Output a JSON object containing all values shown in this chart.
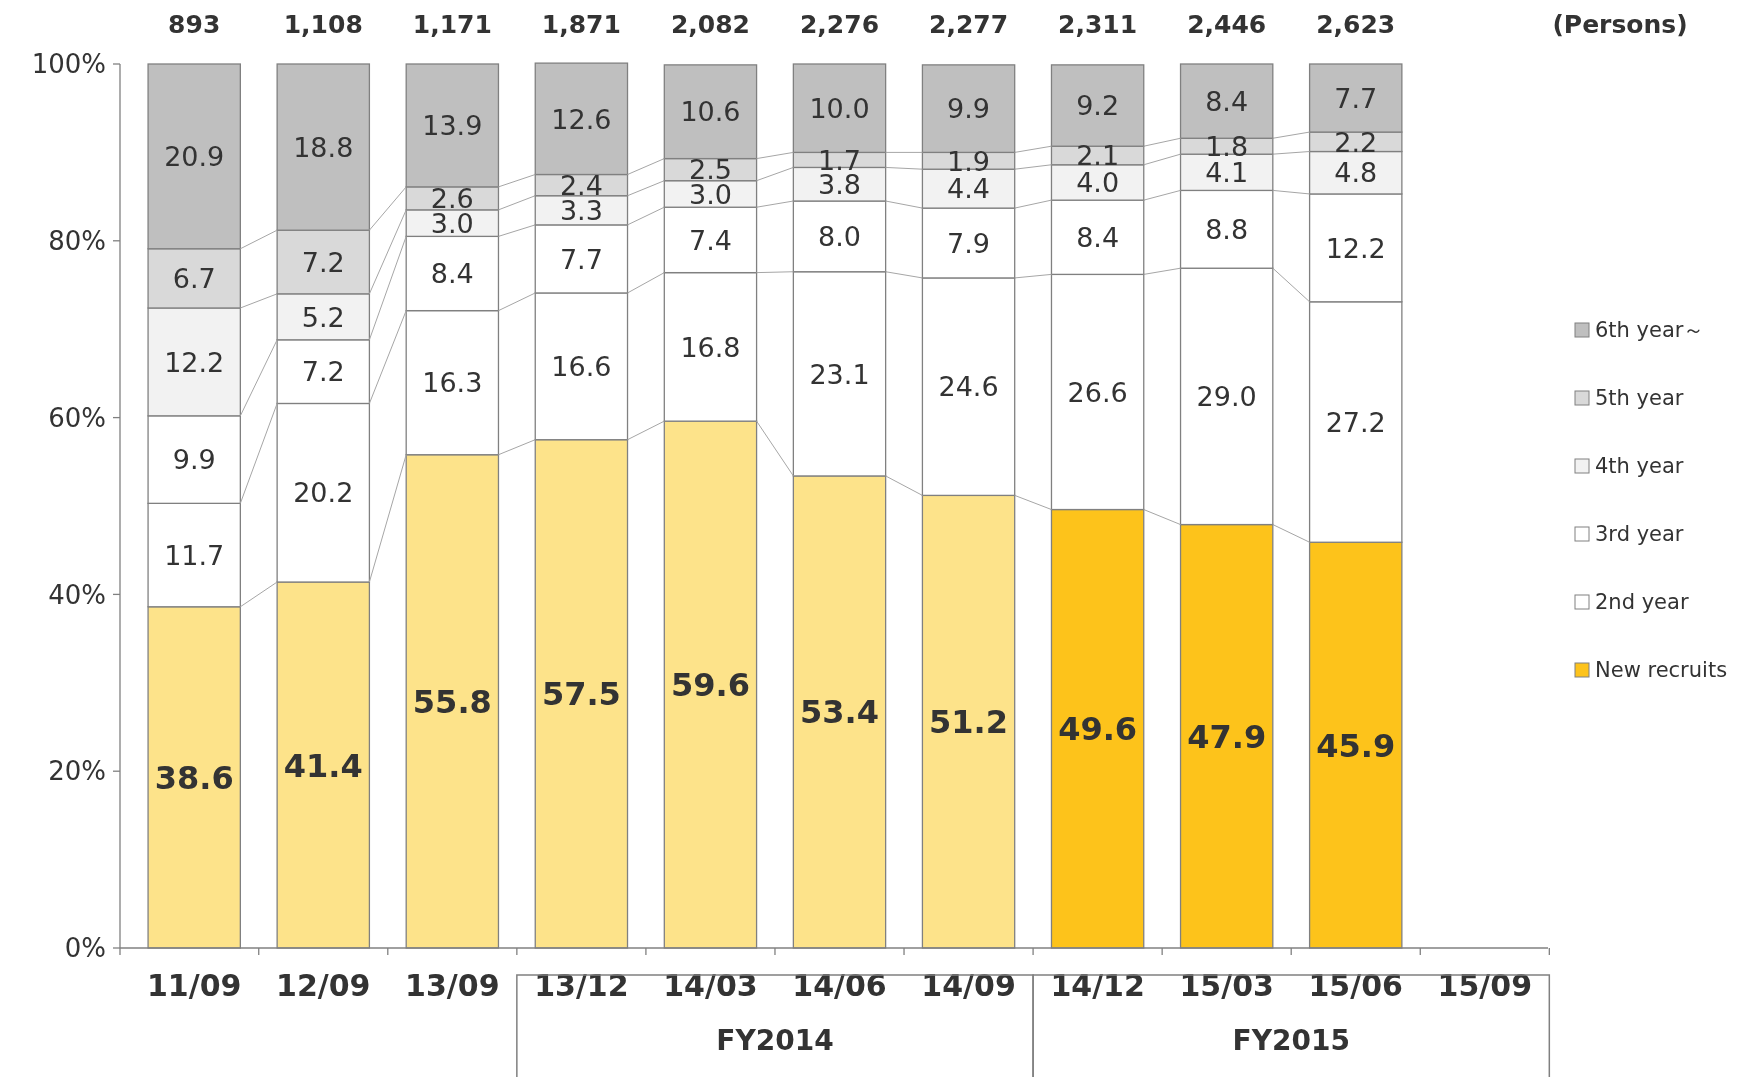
{
  "chart_data": {
    "type": "bar",
    "stacked": true,
    "categories": [
      "11/09",
      "12/09",
      "13/09",
      "13/12",
      "14/03",
      "14/06",
      "14/09",
      "14/12",
      "15/03",
      "15/06",
      "15/09"
    ],
    "series": [
      {
        "name": "New recruits",
        "color": "#fdc31b",
        "colors": [
          "#fde38a",
          "#fde38a",
          "#fde38a",
          "#fde38a",
          "#fde38a",
          "#fde38a",
          "#fde38a",
          "#fdc31b",
          "#fdc31b",
          "#fdc31b",
          null
        ],
        "values": [
          38.6,
          41.4,
          55.8,
          57.5,
          59.6,
          53.4,
          51.2,
          49.6,
          47.9,
          45.9,
          null
        ],
        "value_labels": [
          "38.6",
          "41.4",
          "55.8",
          "57.5",
          "59.6",
          "53.4",
          "51.2",
          "49.6",
          "47.9",
          "45.9",
          null
        ]
      },
      {
        "name": "2nd year",
        "color": "#ffffff",
        "values": [
          11.7,
          20.2,
          16.3,
          16.6,
          16.8,
          23.1,
          24.6,
          26.6,
          29.0,
          27.2,
          null
        ],
        "value_labels": [
          "11.7",
          "20.2",
          "16.3",
          "16.6",
          "16.8",
          "23.1",
          "24.6",
          "26.6",
          "29.0",
          "27.2",
          null
        ]
      },
      {
        "name": "3rd year",
        "color": "#ffffff",
        "values": [
          9.9,
          7.2,
          8.4,
          7.7,
          7.4,
          8.0,
          7.9,
          8.4,
          8.8,
          12.2,
          null
        ],
        "value_labels": [
          "9.9",
          "7.2",
          "8.4",
          "7.7",
          "7.4",
          "8.0",
          "7.9",
          "8.4",
          "8.8",
          "12.2",
          null
        ]
      },
      {
        "name": "4th year",
        "color": "#f2f2f2",
        "values": [
          12.2,
          5.2,
          3.0,
          3.3,
          3.0,
          3.8,
          4.4,
          4.0,
          4.1,
          4.8,
          null
        ],
        "value_labels": [
          "12.2",
          "5.2",
          "3.0",
          "3.3",
          "3.0",
          "3.8",
          "4.4",
          "4.0",
          "4.1",
          "4.8",
          null
        ]
      },
      {
        "name": "5th year",
        "color": "#d9d9d9",
        "values": [
          6.7,
          7.2,
          2.6,
          2.4,
          2.5,
          1.7,
          1.9,
          2.1,
          1.8,
          2.2,
          null
        ],
        "value_labels": [
          "6.7",
          "7.2",
          "2.6",
          "2.4",
          "2.5",
          "1.7",
          "1.9",
          "2.1",
          "1.8",
          "2.2",
          null
        ]
      },
      {
        "name": "6th year～",
        "color": "#bfbfbf",
        "values": [
          20.9,
          18.8,
          13.9,
          12.6,
          10.6,
          10.0,
          9.9,
          9.2,
          8.4,
          7.7,
          null
        ],
        "value_labels": [
          "20.9",
          "18.8",
          "13.9",
          "12.6",
          "10.6",
          "10.0",
          "9.9",
          "9.2",
          "8.4",
          "7.7",
          null
        ]
      }
    ],
    "ylim": [
      0,
      100
    ],
    "yticks": [
      {
        "value": 0,
        "label": "0%"
      },
      {
        "value": 20,
        "label": "20%"
      },
      {
        "value": 40,
        "label": "40%"
      },
      {
        "value": 60,
        "label": "60%"
      },
      {
        "value": 80,
        "label": "80%"
      },
      {
        "value": 100,
        "label": "100%"
      }
    ],
    "grid": false,
    "legend": "right",
    "annotations": [
      "(Persons)",
      "FY2014",
      "FY2015",
      "893",
      "1,108",
      "1,171",
      "1,871",
      "2,082",
      "2,276",
      "2,277",
      "2,311",
      "2,446",
      "2,623"
    ]
  }
}
